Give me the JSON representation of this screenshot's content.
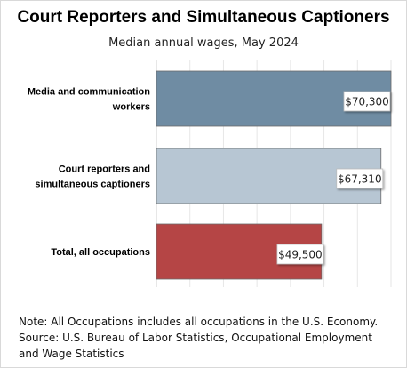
{
  "chart_data": {
    "type": "bar",
    "orientation": "horizontal",
    "title": "Court Reporters and Simultaneous Captioners",
    "subtitle": "Median annual wages, May 2024",
    "categories": [
      [
        "Media and communication",
        "workers"
      ],
      [
        "Court reporters and",
        "simultaneous captioners"
      ],
      [
        "Total, all occupations"
      ]
    ],
    "values": [
      70300,
      67310,
      49500
    ],
    "value_labels": [
      "$70,300",
      "$67,310",
      "$49,500"
    ],
    "colors": [
      "#6f8ca3",
      "#b7c6d3",
      "#b54545"
    ],
    "xlim": [
      0,
      70300
    ],
    "grid": true,
    "legend": "none"
  },
  "notes": {
    "note": "Note: All Occupations includes all occupations in the U.S. Economy.",
    "source": "Source: U.S. Bureau of Labor Statistics, Occupational Employment and Wage Statistics"
  }
}
